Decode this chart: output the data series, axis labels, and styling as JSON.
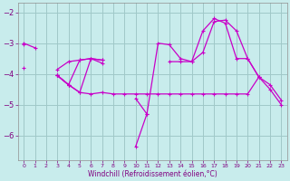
{
  "x": [
    0,
    1,
    2,
    3,
    4,
    5,
    6,
    7,
    8,
    9,
    10,
    11,
    12,
    13,
    14,
    15,
    16,
    17,
    18,
    19,
    20,
    21,
    22,
    23
  ],
  "line1": [
    -3.0,
    -3.15,
    null,
    -3.85,
    -3.6,
    -3.55,
    -3.5,
    -3.55,
    null,
    null,
    null,
    null,
    null,
    null,
    null,
    null,
    null,
    null,
    null,
    null,
    null,
    null,
    null,
    null
  ],
  "line2": [
    -3.05,
    null,
    null,
    -4.05,
    -4.35,
    -4.6,
    -4.65,
    -4.6,
    -4.65,
    -4.65,
    -4.65,
    -4.65,
    -4.65,
    -4.65,
    -4.65,
    -4.65,
    -4.65,
    -4.65,
    -4.65,
    -4.65,
    -4.65,
    -4.1,
    -4.35,
    -4.85
  ],
  "line3": [
    null,
    null,
    null,
    -4.05,
    -4.35,
    -3.55,
    -3.5,
    -3.55,
    null,
    null,
    -4.8,
    -5.3,
    -3.0,
    -3.05,
    -3.5,
    -3.6,
    -3.3,
    -2.3,
    -2.25,
    -2.6,
    -3.5,
    -4.1,
    -4.5,
    -5.0
  ],
  "line4": [
    null,
    null,
    null,
    -4.05,
    -4.35,
    -4.6,
    -3.5,
    -3.65,
    null,
    null,
    -6.35,
    -5.3,
    null,
    -3.6,
    -3.6,
    -3.6,
    -2.6,
    -2.2,
    -2.35,
    -3.5,
    -3.5,
    -4.1,
    null,
    null
  ],
  "line5": [
    -3.8,
    null,
    null,
    -4.05,
    -4.35,
    null,
    null,
    null,
    null,
    null,
    null,
    null,
    null,
    null,
    null,
    null,
    null,
    null,
    null,
    null,
    null,
    null,
    null,
    null
  ],
  "xlabel": "Windchill (Refroidissement éolien,°C)",
  "background_color": "#c8ecec",
  "grid_color": "#a0c8c8",
  "line_color": "#c800c8",
  "ylim": [
    -6.8,
    -1.7
  ],
  "xlim": [
    -0.5,
    23.5
  ],
  "yticks": [
    -6,
    -5,
    -4,
    -3,
    -2
  ],
  "xticks": [
    0,
    1,
    2,
    3,
    4,
    5,
    6,
    7,
    8,
    9,
    10,
    11,
    12,
    13,
    14,
    15,
    16,
    17,
    18,
    19,
    20,
    21,
    22,
    23
  ]
}
